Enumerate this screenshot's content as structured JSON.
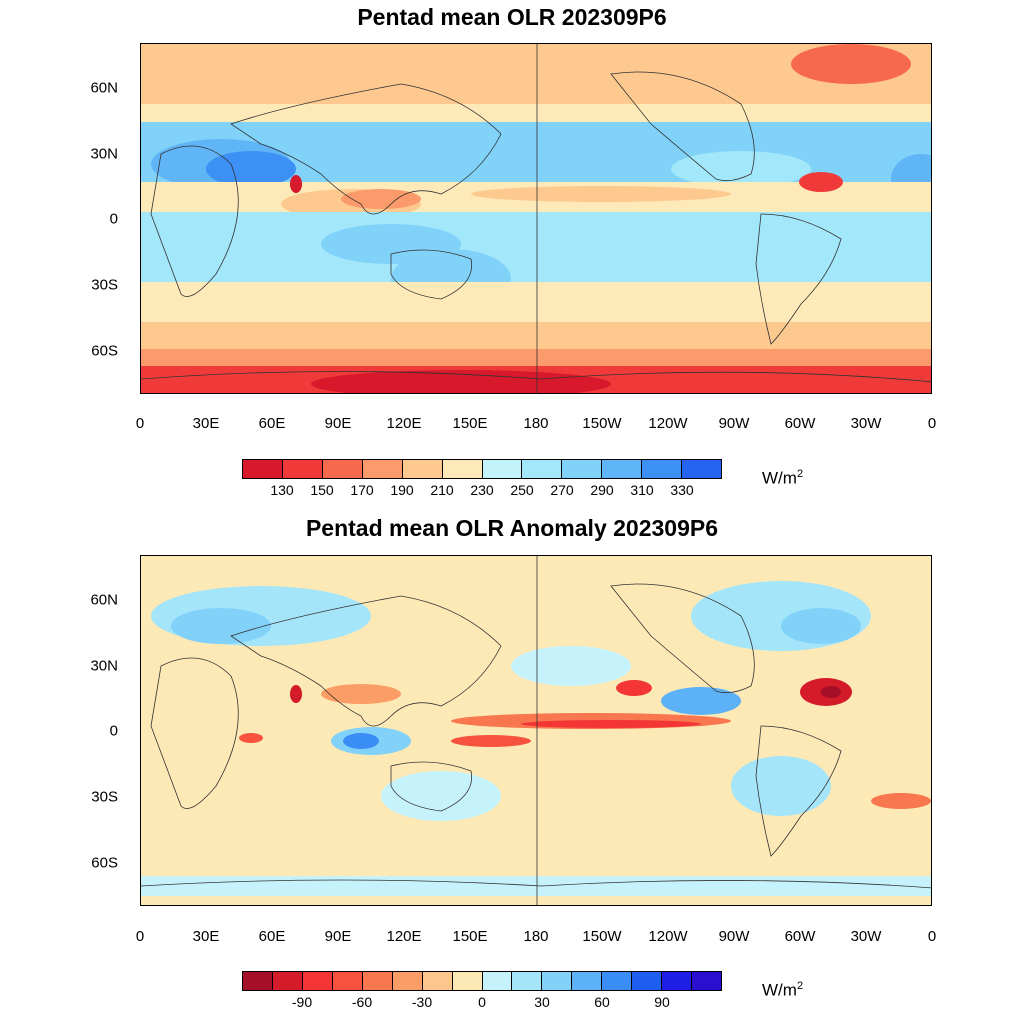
{
  "panels": [
    {
      "title": "Pentad mean OLR 202309P6",
      "units_base": "W/m",
      "units_exp": "2",
      "colorbar": {
        "colors": [
          "#d7192b",
          "#f03a3a",
          "#f7694c",
          "#fb9a6a",
          "#fdc98f",
          "#fdeab8",
          "#c4f4fb",
          "#a2e7fa",
          "#81d2f9",
          "#60b5f7",
          "#3d91f5",
          "#2464f0"
        ],
        "labels": [
          "130",
          "150",
          "170",
          "190",
          "210",
          "230",
          "250",
          "270",
          "290",
          "310",
          "330"
        ]
      }
    },
    {
      "title": "Pentad mean OLR Anomaly 202309P6",
      "units_base": "W/m",
      "units_exp": "2",
      "colorbar": {
        "colors": [
          "#a50f27",
          "#d31b2a",
          "#f33535",
          "#f6523e",
          "#f9774f",
          "#fb9d66",
          "#fcc68c",
          "#fde9b6",
          "#c6f3fb",
          "#a4e5fa",
          "#82d1f9",
          "#5db1f6",
          "#3a8df4",
          "#1e5ef0",
          "#1f1ee6",
          "#2a0fcf"
        ],
        "labels": [
          "-90",
          "-60",
          "-30",
          "0",
          "30",
          "60",
          "90"
        ]
      }
    }
  ],
  "x_tick_labels": [
    "0",
    "30E",
    "60E",
    "90E",
    "120E",
    "150E",
    "180",
    "150W",
    "120W",
    "90W",
    "60W",
    "30W",
    "0"
  ],
  "y_tick_labels": [
    "60N",
    "30N",
    "0",
    "30S",
    "60S"
  ]
}
